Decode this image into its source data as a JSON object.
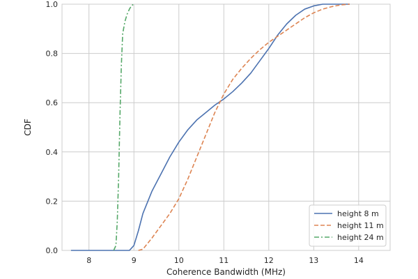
{
  "chart_data": {
    "type": "line",
    "xlabel": "Coherence Bandwidth (MHz)",
    "ylabel": "CDF",
    "xlim": [
      7.4,
      14.7
    ],
    "ylim": [
      0.0,
      1.0
    ],
    "xticks": [
      8,
      9,
      10,
      11,
      12,
      13,
      14
    ],
    "yticks": [
      0.0,
      0.2,
      0.4,
      0.6,
      0.8,
      1.0
    ],
    "xtick_labels": [
      "8",
      "9",
      "10",
      "11",
      "12",
      "13",
      "14"
    ],
    "ytick_labels": [
      "0.0",
      "0.2",
      "0.4",
      "0.6",
      "0.8",
      "1.0"
    ],
    "grid": true,
    "legend_position": "bottom-right",
    "series": [
      {
        "name": "height 8 m",
        "color": "#4c72b0",
        "dash": "solid",
        "points": [
          [
            7.6,
            0.0
          ],
          [
            8.9,
            0.0
          ],
          [
            9.0,
            0.02
          ],
          [
            9.1,
            0.08
          ],
          [
            9.2,
            0.15
          ],
          [
            9.4,
            0.24
          ],
          [
            9.6,
            0.31
          ],
          [
            9.8,
            0.38
          ],
          [
            10.0,
            0.44
          ],
          [
            10.2,
            0.49
          ],
          [
            10.4,
            0.53
          ],
          [
            10.6,
            0.56
          ],
          [
            10.8,
            0.59
          ],
          [
            11.0,
            0.615
          ],
          [
            11.2,
            0.645
          ],
          [
            11.4,
            0.68
          ],
          [
            11.6,
            0.72
          ],
          [
            11.8,
            0.77
          ],
          [
            12.0,
            0.82
          ],
          [
            12.2,
            0.875
          ],
          [
            12.4,
            0.92
          ],
          [
            12.6,
            0.955
          ],
          [
            12.8,
            0.98
          ],
          [
            13.0,
            0.993
          ],
          [
            13.2,
            1.0
          ],
          [
            13.8,
            1.0
          ]
        ]
      },
      {
        "name": "height 11 m",
        "color": "#dd8452",
        "dash": "dashed",
        "points": [
          [
            9.1,
            0.0
          ],
          [
            9.2,
            0.005
          ],
          [
            9.4,
            0.05
          ],
          [
            9.6,
            0.1
          ],
          [
            9.8,
            0.15
          ],
          [
            10.0,
            0.21
          ],
          [
            10.2,
            0.29
          ],
          [
            10.4,
            0.38
          ],
          [
            10.6,
            0.47
          ],
          [
            10.8,
            0.56
          ],
          [
            11.0,
            0.635
          ],
          [
            11.2,
            0.695
          ],
          [
            11.4,
            0.74
          ],
          [
            11.6,
            0.78
          ],
          [
            11.8,
            0.815
          ],
          [
            12.0,
            0.845
          ],
          [
            12.2,
            0.87
          ],
          [
            12.4,
            0.895
          ],
          [
            12.6,
            0.92
          ],
          [
            12.8,
            0.945
          ],
          [
            13.0,
            0.965
          ],
          [
            13.2,
            0.98
          ],
          [
            13.4,
            0.99
          ],
          [
            13.6,
            0.997
          ],
          [
            13.8,
            1.0
          ]
        ]
      },
      {
        "name": "height 24 m",
        "color": "#55a868",
        "dash": "dashdot",
        "points": [
          [
            8.55,
            0.0
          ],
          [
            8.6,
            0.02
          ],
          [
            8.63,
            0.12
          ],
          [
            8.66,
            0.3
          ],
          [
            8.69,
            0.55
          ],
          [
            8.72,
            0.75
          ],
          [
            8.75,
            0.88
          ],
          [
            8.8,
            0.93
          ],
          [
            8.85,
            0.96
          ],
          [
            8.9,
            0.98
          ],
          [
            8.95,
            0.995
          ],
          [
            9.0,
            1.0
          ]
        ]
      }
    ]
  }
}
